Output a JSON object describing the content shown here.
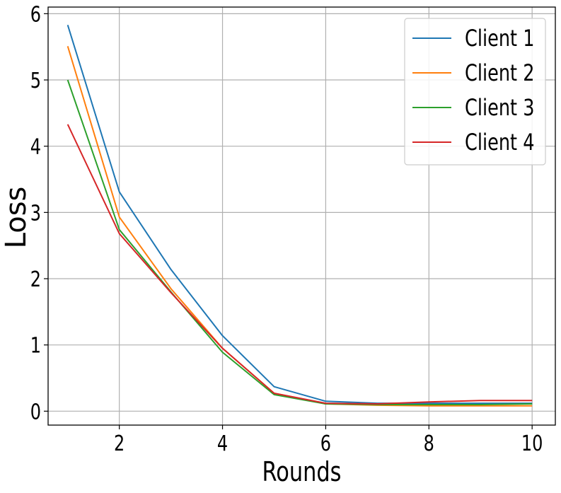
{
  "chart_data": {
    "type": "line",
    "title": "",
    "xlabel": "Rounds",
    "ylabel": "Loss",
    "x": [
      1,
      2,
      3,
      4,
      5,
      6,
      7,
      8,
      9,
      10
    ],
    "xlim": [
      0.62,
      10.45
    ],
    "ylim": [
      -0.21,
      6.1
    ],
    "xticks": [
      2,
      4,
      6,
      8,
      10
    ],
    "yticks": [
      0,
      1,
      2,
      3,
      4,
      5,
      6
    ],
    "grid": true,
    "legend_position": "top-right",
    "series": [
      {
        "name": "Client 1",
        "color": "#1f77b4",
        "values": [
          5.83,
          3.31,
          2.14,
          1.14,
          0.37,
          0.15,
          0.12,
          0.12,
          0.12,
          0.12
        ]
      },
      {
        "name": "Client 2",
        "color": "#ff7f0e",
        "values": [
          5.51,
          2.93,
          1.85,
          0.95,
          0.27,
          0.11,
          0.09,
          0.08,
          0.08,
          0.08
        ]
      },
      {
        "name": "Client 3",
        "color": "#2ca02c",
        "values": [
          5.0,
          2.74,
          1.8,
          0.89,
          0.25,
          0.11,
          0.1,
          0.1,
          0.1,
          0.11
        ]
      },
      {
        "name": "Client 4",
        "color": "#d62728",
        "values": [
          4.33,
          2.68,
          1.79,
          0.95,
          0.27,
          0.12,
          0.11,
          0.14,
          0.16,
          0.16
        ]
      }
    ]
  }
}
